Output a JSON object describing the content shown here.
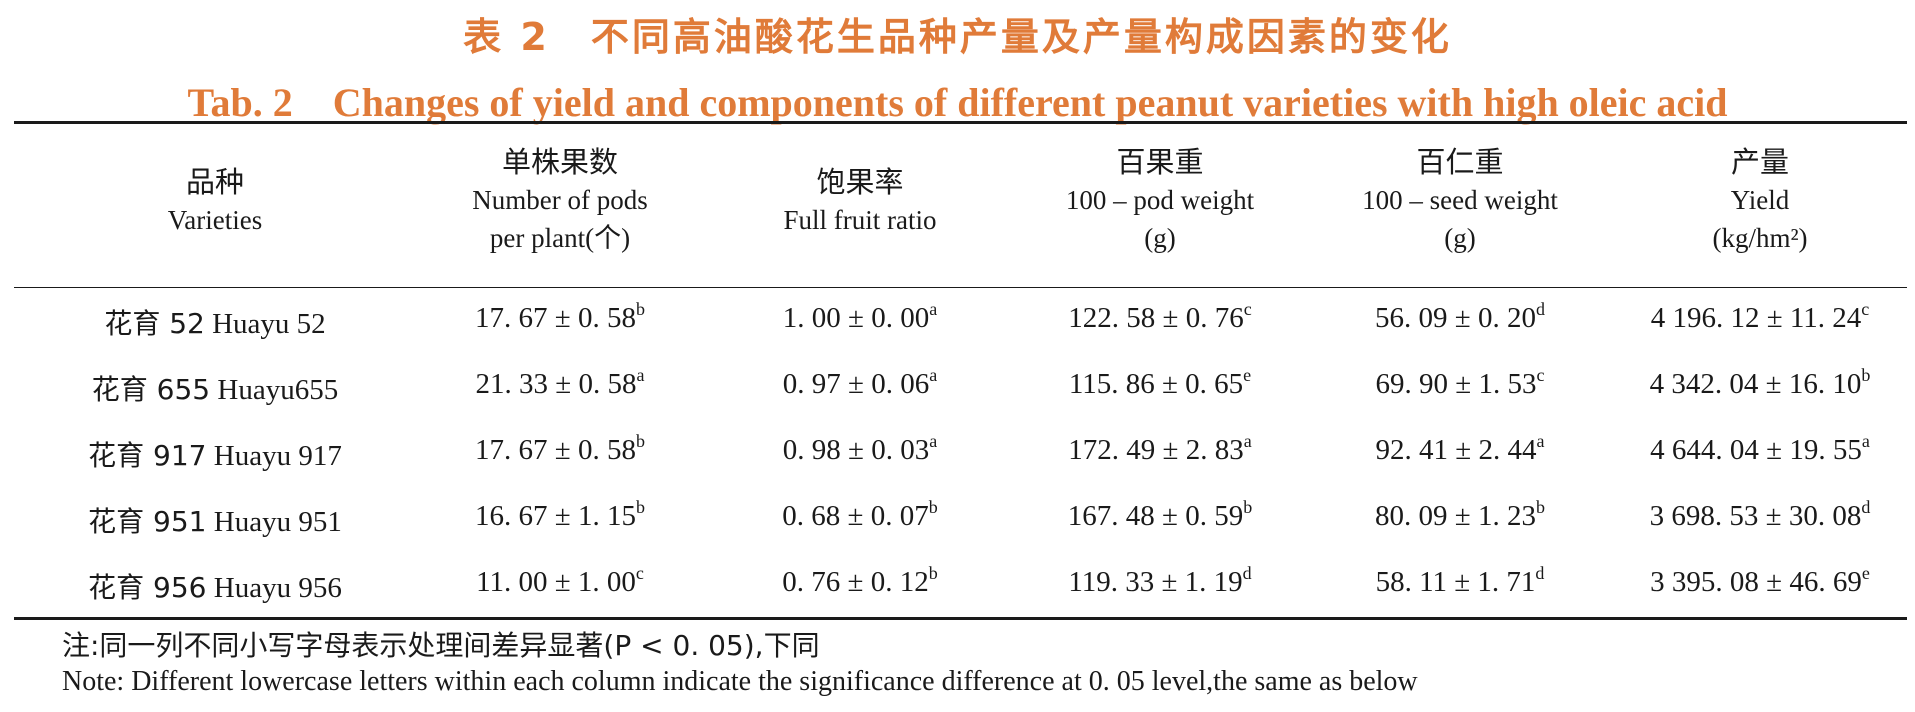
{
  "title": {
    "cn": "表 2　不同高油酸花生品种产量及产量构成因素的变化",
    "en": "Tab. 2　Changes of yield and components of different peanut varieties with high oleic acid"
  },
  "table": {
    "headers": [
      {
        "cn": "品种",
        "en1": "Varieties",
        "en2": ""
      },
      {
        "cn": "单株果数",
        "en1": "Number of pods",
        "en2": "per plant(个)"
      },
      {
        "cn": "饱果率",
        "en1": "Full fruit ratio",
        "en2": ""
      },
      {
        "cn": "百果重",
        "en1": "100 – pod weight",
        "en2": "(g)"
      },
      {
        "cn": "百仁重",
        "en1": "100 – seed weight",
        "en2": "(g)"
      },
      {
        "cn": "产量",
        "en1": "Yield",
        "en2": "(kg/hm²)"
      }
    ],
    "rows": [
      [
        {
          "name_cn": "花育 52",
          "name_en": "Huayu 52"
        },
        {
          "value": "17. 67 ± 0. 58",
          "sig": "b"
        },
        {
          "value": "1. 00 ± 0. 00",
          "sig": "a"
        },
        {
          "value": "122. 58 ± 0. 76",
          "sig": "c"
        },
        {
          "value": "56. 09 ± 0. 20",
          "sig": "d"
        },
        {
          "value": "4 196. 12 ± 11. 24",
          "sig": "c"
        }
      ],
      [
        {
          "name_cn": "花育 655",
          "name_en": "Huayu655"
        },
        {
          "value": "21. 33 ± 0. 58",
          "sig": "a"
        },
        {
          "value": "0. 97 ± 0. 06",
          "sig": "a"
        },
        {
          "value": "115. 86 ± 0. 65",
          "sig": "e"
        },
        {
          "value": "69. 90 ± 1. 53",
          "sig": "c"
        },
        {
          "value": "4 342. 04 ± 16. 10",
          "sig": "b"
        }
      ],
      [
        {
          "name_cn": "花育 917",
          "name_en": "Huayu 917"
        },
        {
          "value": "17. 67 ± 0. 58",
          "sig": "b"
        },
        {
          "value": "0. 98 ± 0. 03",
          "sig": "a"
        },
        {
          "value": "172. 49 ± 2. 83",
          "sig": "a"
        },
        {
          "value": "92. 41 ± 2. 44",
          "sig": "a"
        },
        {
          "value": "4 644. 04 ± 19. 55",
          "sig": "a"
        }
      ],
      [
        {
          "name_cn": "花育 951",
          "name_en": "Huayu 951"
        },
        {
          "value": "16. 67 ± 1. 15",
          "sig": "b"
        },
        {
          "value": "0. 68 ± 0. 07",
          "sig": "b"
        },
        {
          "value": "167. 48 ± 0. 59",
          "sig": "b"
        },
        {
          "value": "80. 09 ± 1. 23",
          "sig": "b"
        },
        {
          "value": "3 698. 53 ± 30. 08",
          "sig": "d"
        }
      ],
      [
        {
          "name_cn": "花育 956",
          "name_en": "Huayu 956"
        },
        {
          "value": "11. 00 ± 1. 00",
          "sig": "c"
        },
        {
          "value": "0. 76 ± 0. 12",
          "sig": "b"
        },
        {
          "value": "119. 33 ± 1. 19",
          "sig": "d"
        },
        {
          "value": "58. 11 ± 1. 71",
          "sig": "d"
        },
        {
          "value": "3 395. 08 ± 46. 69",
          "sig": "e"
        }
      ]
    ]
  },
  "note": {
    "cn": "注:同一列不同小写字母表示处理间差异显著(P < 0. 05),下同",
    "en": "Note: Different lowercase letters within each column indicate the significance difference at 0. 05 level,the same as below"
  },
  "colors": {
    "title": "#e07b39",
    "text": "#1a1a1a",
    "rule": "#1a1a1a"
  }
}
